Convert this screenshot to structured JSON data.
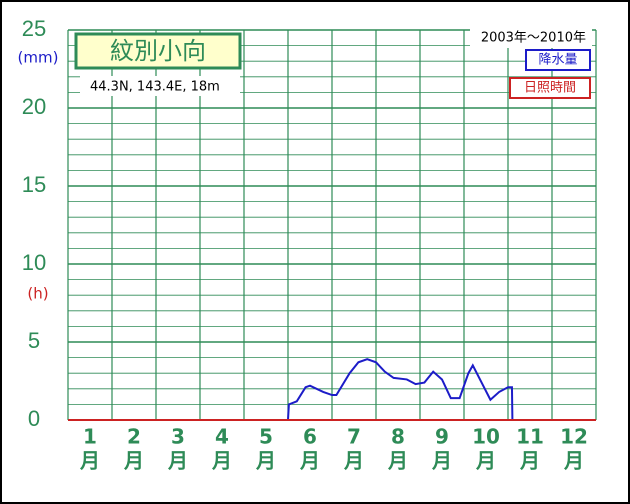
{
  "chart_data": {
    "type": "line",
    "station": "紋別小向",
    "location": "44.3N,  143.4E,  18m",
    "period": "2003年〜2010年",
    "y_label": "(mm)",
    "y2_label": "(h)",
    "x_unit": "月",
    "xlim": [
      1,
      13
    ],
    "xticks": [
      {
        "value": 1.5,
        "label": "1"
      },
      {
        "value": 2.5,
        "label": "2"
      },
      {
        "value": 3.5,
        "label": "3"
      },
      {
        "value": 4.5,
        "label": "4"
      },
      {
        "value": 5.5,
        "label": "5"
      },
      {
        "value": 6.5,
        "label": "6"
      },
      {
        "value": 7.5,
        "label": "7"
      },
      {
        "value": 8.5,
        "label": "8"
      },
      {
        "value": 9.5,
        "label": "9"
      },
      {
        "value": 10.5,
        "label": "10"
      },
      {
        "value": 11.5,
        "label": "11"
      },
      {
        "value": 12.5,
        "label": "12"
      }
    ],
    "ylim": [
      0,
      25
    ],
    "yticks": [
      0,
      5,
      10,
      15,
      20,
      25
    ],
    "grid": true,
    "series": [
      {
        "name": "降水量",
        "color": "#1c1cc8",
        "x": [
          6.0,
          6.02,
          6.2,
          6.4,
          6.5,
          6.8,
          7.0,
          7.1,
          7.4,
          7.6,
          7.8,
          8.0,
          8.2,
          8.4,
          8.7,
          8.9,
          9.1,
          9.3,
          9.5,
          9.7,
          9.9,
          10.1,
          10.2,
          10.4,
          10.6,
          10.8,
          11.0,
          11.09,
          11.1
        ],
        "values": [
          0,
          1.0,
          1.2,
          2.1,
          2.2,
          1.8,
          1.6,
          1.6,
          3.0,
          3.7,
          3.9,
          3.7,
          3.1,
          2.7,
          2.6,
          2.3,
          2.4,
          3.1,
          2.6,
          1.4,
          1.4,
          3.0,
          3.5,
          2.4,
          1.3,
          1.8,
          2.1,
          2.1,
          0
        ]
      },
      {
        "name": "日照時間",
        "color": "#cc2222",
        "x": [
          1,
          13
        ],
        "values": [
          0,
          0
        ]
      }
    ]
  }
}
